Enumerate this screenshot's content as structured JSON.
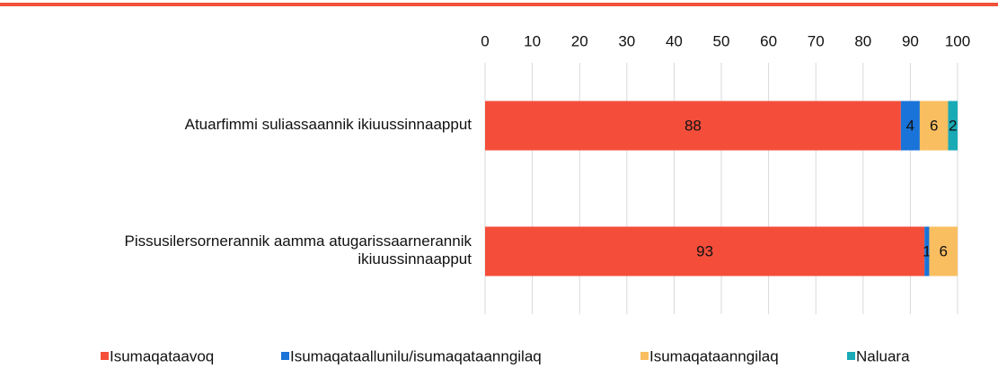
{
  "chart_data": {
    "type": "stacked-bar-horizontal",
    "categories": [
      "Atuarfimmi suliassaannik ikiuussinnaapput",
      "Pissusilersornerannik aamma atugarissaarnerannik ikiuussinnaapput"
    ],
    "series": [
      {
        "name": "Isumaqataavoq",
        "color": "#f44e3b",
        "values": [
          88,
          93
        ]
      },
      {
        "name": "Isumaqataallunilu/isumaqataanngilaq",
        "color": "#1a73d8",
        "values": [
          4,
          1
        ]
      },
      {
        "name": "Isumaqataanngilaq",
        "color": "#f9be60",
        "values": [
          6,
          6
        ]
      },
      {
        "name": "Naluara",
        "color": "#19aab6",
        "values": [
          2,
          0
        ]
      }
    ],
    "xlim": [
      0,
      100
    ],
    "xticks": [
      0,
      10,
      20,
      30,
      40,
      50,
      60,
      70,
      80,
      90,
      100
    ],
    "grid": true,
    "legend": "bottom"
  }
}
